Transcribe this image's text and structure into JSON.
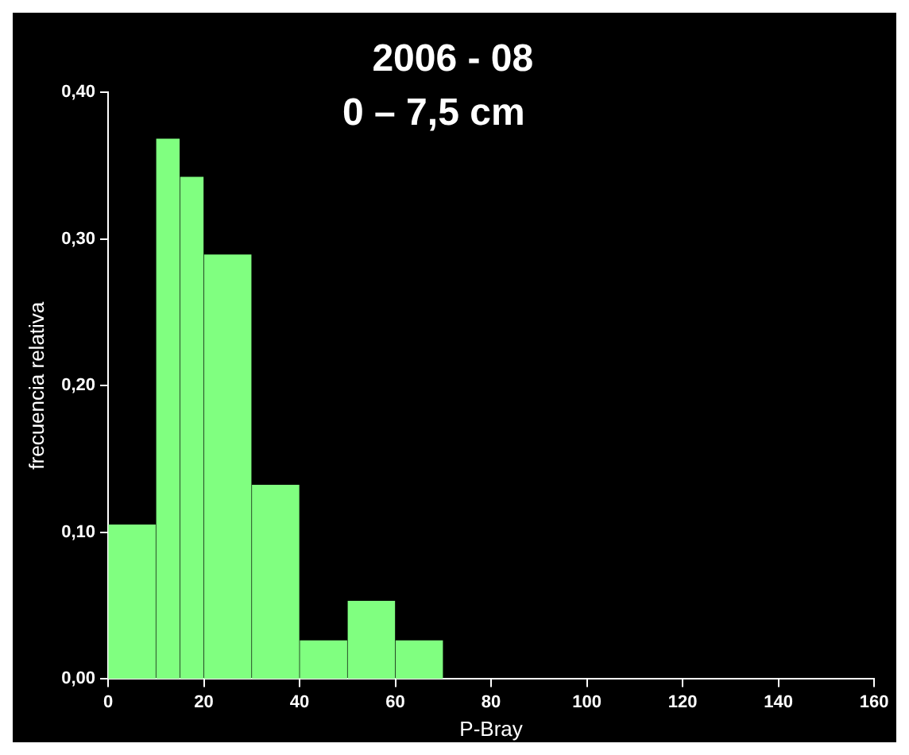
{
  "chart_data": {
    "type": "histogram",
    "title": "2006 - 08",
    "subtitle": "0 – 7,5 cm",
    "xlabel": "P-Bray",
    "ylabel": "frecuencia relativa",
    "bins": [
      0,
      10,
      15,
      20,
      30,
      40,
      50,
      60,
      70
    ],
    "values": [
      0.105,
      0.368,
      0.342,
      0.289,
      0.132,
      0.026,
      0.053,
      0.026
    ],
    "color": "#80ff80",
    "xlim": [
      0,
      160
    ],
    "xticks": [
      0,
      20,
      40,
      60,
      80,
      100,
      120,
      140,
      160
    ],
    "ylim": [
      0,
      0.4
    ],
    "yticks": [
      {
        "value": 0,
        "label": "0,00"
      },
      {
        "value": 0.1,
        "label": "0,10"
      },
      {
        "value": 0.2,
        "label": "0,20"
      },
      {
        "value": 0.3,
        "label": "0,30"
      },
      {
        "value": 0.4,
        "label": "0,40"
      }
    ],
    "grid": false,
    "legend": false
  }
}
